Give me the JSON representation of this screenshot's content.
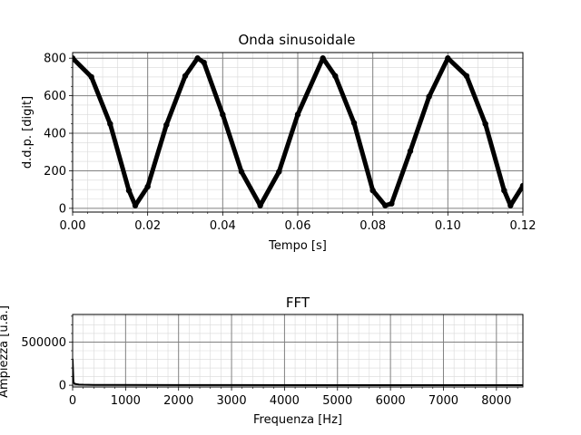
{
  "chart_data": [
    {
      "type": "line",
      "title": "Onda sinusoidale",
      "xlabel": "Tempo [s]",
      "ylabel": "d.d.p. [digit]",
      "xlim": [
        0,
        0.12
      ],
      "ylim": [
        -20,
        830
      ],
      "xticks": [
        "0.00",
        "0.02",
        "0.04",
        "0.06",
        "0.08",
        "0.10",
        "0.12"
      ],
      "yticks": [
        "0",
        "200",
        "400",
        "600",
        "800"
      ],
      "grid": true,
      "marker": "circle",
      "color": "#000000",
      "series": [
        {
          "x": [
            0,
            0.005,
            0.01,
            0.015,
            0.0167,
            0.02,
            0.025,
            0.03,
            0.0333,
            0.035,
            0.04,
            0.045,
            0.05,
            0.055,
            0.06,
            0.0667,
            0.07,
            0.075,
            0.08,
            0.0833,
            0.085,
            0.09,
            0.095,
            0.1,
            0.105,
            0.11,
            0.115,
            0.1167,
            0.12
          ],
          "y": [
            800,
            700,
            450,
            95,
            15,
            115,
            445,
            705,
            800,
            777,
            500,
            195,
            15,
            195,
            500,
            800,
            705,
            455,
            95,
            15,
            25,
            305,
            595,
            800,
            705,
            450,
            95,
            15,
            120
          ]
        }
      ]
    },
    {
      "type": "line",
      "title": "FFT",
      "xlabel": "Frequenza [Hz]",
      "ylabel": "Ampiezza [u.a.]",
      "xlim": [
        0,
        8500
      ],
      "ylim": [
        -20000,
        820000
      ],
      "xticks": [
        "0",
        "1000",
        "2000",
        "3000",
        "4000",
        "5000",
        "6000",
        "7000",
        "8000"
      ],
      "yticks": [
        "0",
        "500000"
      ],
      "grid": true,
      "color": "#000000",
      "series": [
        {
          "x": [
            0,
            15,
            30,
            50,
            80,
            120,
            200,
            400,
            800,
            2000,
            5000,
            8500
          ],
          "y": [
            300000,
            40000,
            20000,
            15000,
            12000,
            8000,
            6000,
            4000,
            3000,
            2000,
            1500,
            1000
          ]
        }
      ]
    }
  ]
}
